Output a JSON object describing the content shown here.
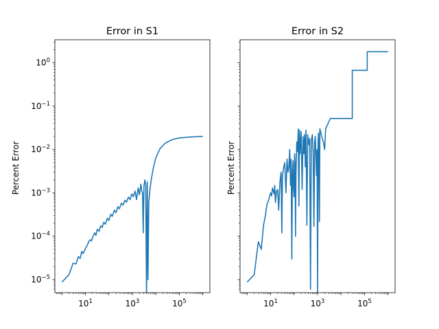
{
  "chart_data": [
    {
      "type": "line",
      "title": "Error in S1",
      "ylabel": "Percent Error",
      "xscale": "log",
      "yscale": "log",
      "xlim_exp": [
        -0.3,
        6.3
      ],
      "ylim_exp": [
        -5.3,
        0.53
      ],
      "x_ticks": [
        {
          "exp": 1,
          "base": "10",
          "sup": "1"
        },
        {
          "exp": 3,
          "base": "10",
          "sup": "3"
        },
        {
          "exp": 5,
          "base": "10",
          "sup": "5"
        }
      ],
      "y_ticks": [
        {
          "exp": 0,
          "base": "10",
          "sup": "0"
        },
        {
          "exp": -1,
          "base": "10",
          "sup": "−1"
        },
        {
          "exp": -2,
          "base": "10",
          "sup": "−2"
        },
        {
          "exp": -3,
          "base": "10",
          "sup": "−3"
        },
        {
          "exp": -4,
          "base": "10",
          "sup": "−4"
        },
        {
          "exp": -5,
          "base": "10",
          "sup": "−5"
        }
      ],
      "series": [
        {
          "color": "#1f77b4",
          "points": [
            [
              1,
              8.8e-06
            ],
            [
              2,
              1.3e-05
            ],
            [
              3,
              2.4e-05
            ],
            [
              4,
              2.3e-05
            ],
            [
              5,
              3.4e-05
            ],
            [
              6,
              3.1e-05
            ],
            [
              7,
              4.5e-05
            ],
            [
              8,
              4e-05
            ],
            [
              10,
              5.2e-05
            ],
            [
              12,
              6.2e-05
            ],
            [
              14,
              7.6e-05
            ],
            [
              16,
              8.3e-05
            ],
            [
              18,
              7.8e-05
            ],
            [
              21,
              9.9e-05
            ],
            [
              25,
              0.00012
            ],
            [
              28,
              0.000105
            ],
            [
              32,
              0.000145
            ],
            [
              38,
              0.00013
            ],
            [
              45,
              0.000175
            ],
            [
              52,
              0.00016
            ],
            [
              60,
              0.00021
            ],
            [
              70,
              0.00019
            ],
            [
              85,
              0.00026
            ],
            [
              100,
              0.00023
            ],
            [
              120,
              0.00032
            ],
            [
              140,
              0.00029
            ],
            [
              170,
              0.0004
            ],
            [
              200,
              0.00035
            ],
            [
              240,
              0.00048
            ],
            [
              280,
              0.00043
            ],
            [
              340,
              0.00058
            ],
            [
              400,
              0.00052
            ],
            [
              480,
              0.00068
            ],
            [
              560,
              0.00061
            ],
            [
              680,
              0.0008
            ],
            [
              800,
              0.0007
            ],
            [
              950,
              0.00095
            ],
            [
              1100,
              0.00082
            ],
            [
              1300,
              0.0011
            ],
            [
              1500,
              0.0007
            ],
            [
              1750,
              0.0013
            ],
            [
              2000,
              0.0009
            ],
            [
              2300,
              0.0016
            ],
            [
              2500,
              0.0011
            ],
            [
              2700,
              0.001
            ],
            [
              2900,
              0.00012
            ],
            [
              3100,
              0.0014
            ],
            [
              3400,
              0.002
            ],
            [
              3700,
              0.0015
            ],
            [
              4000,
              4e-06
            ],
            [
              4300,
              0.0018
            ],
            [
              4600,
              1e-05
            ],
            [
              5000,
              0.0006
            ],
            [
              5600,
              0.0012
            ],
            [
              6500,
              0.0022
            ],
            [
              8000,
              0.004
            ],
            [
              10000,
              0.0065
            ],
            [
              15000,
              0.0105
            ],
            [
              25000,
              0.014
            ],
            [
              50000,
              0.017
            ],
            [
              100000,
              0.0185
            ],
            [
              300000,
              0.0195
            ],
            [
              1000000,
              0.02
            ]
          ]
        }
      ]
    },
    {
      "type": "line",
      "title": "Error in S2",
      "ylabel": "Percent Error",
      "xscale": "log",
      "yscale": "log",
      "xlim_exp": [
        -0.3,
        6.3
      ],
      "ylim_exp": [
        -5.3,
        0.53
      ],
      "x_ticks": [
        {
          "exp": 1,
          "base": "10",
          "sup": "1"
        },
        {
          "exp": 3,
          "base": "10",
          "sup": "3"
        },
        {
          "exp": 5,
          "base": "10",
          "sup": "5"
        }
      ],
      "y_ticks": [],
      "series": [
        {
          "color": "#1f77b4",
          "points": [
            [
              1,
              8.8e-06
            ],
            [
              2,
              1.3e-05
            ],
            [
              3,
              7.5e-05
            ],
            [
              4,
              5e-05
            ],
            [
              5,
              0.00018
            ],
            [
              6,
              0.0003
            ],
            [
              7,
              0.00055
            ],
            [
              8,
              0.00065
            ],
            [
              10,
              0.001
            ],
            [
              11,
              0.00085
            ],
            [
              12,
              0.0013
            ],
            [
              14,
              0.00095
            ],
            [
              15,
              0.0015
            ],
            [
              16,
              0.0006
            ],
            [
              18,
              0.0011
            ],
            [
              20,
              0.0012
            ],
            [
              22,
              0.0004
            ],
            [
              25,
              0.0018
            ],
            [
              28,
              0.003
            ],
            [
              30,
              0.00012
            ],
            [
              32,
              0.0025
            ],
            [
              35,
              0.0035
            ],
            [
              40,
              0.005
            ],
            [
              45,
              0.001
            ],
            [
              50,
              0.006
            ],
            [
              55,
              0.003
            ],
            [
              60,
              0.004
            ],
            [
              65,
              0.01
            ],
            [
              70,
              0.0015
            ],
            [
              75,
              0.006
            ],
            [
              80,
              3e-05
            ],
            [
              85,
              0.003
            ],
            [
              90,
              0.0055
            ],
            [
              95,
              0.0012
            ],
            [
              100,
              0.0008
            ],
            [
              105,
              0.008
            ],
            [
              110,
              0.005
            ],
            [
              115,
              0.0001
            ],
            [
              120,
              0.0025
            ],
            [
              130,
              0.015
            ],
            [
              140,
              0.009
            ],
            [
              150,
              0.03
            ],
            [
              160,
              0.0005
            ],
            [
              170,
              0.028
            ],
            [
              180,
              0.008
            ],
            [
              200,
              0.026
            ],
            [
              220,
              0.0012
            ],
            [
              240,
              0.02
            ],
            [
              260,
              0.008
            ],
            [
              280,
              0.022
            ],
            [
              300,
              0.004
            ],
            [
              320,
              0.028
            ],
            [
              350,
              0.00018
            ],
            [
              380,
              0.022
            ],
            [
              420,
              0.013
            ],
            [
              460,
              0.018
            ],
            [
              500,
              6e-06
            ],
            [
              540,
              0.016
            ],
            [
              600,
              0.022
            ],
            [
              650,
              0.008
            ],
            [
              700,
              0.00017
            ],
            [
              750,
              0.015
            ],
            [
              800,
              0.02
            ],
            [
              900,
              0.0025
            ],
            [
              950,
              0.01
            ],
            [
              1000,
              4e-06
            ],
            [
              1050,
              0.016
            ],
            [
              1100,
              0.024
            ],
            [
              1200,
              0.00022
            ],
            [
              1250,
              0.03
            ],
            [
              1500,
              0.02
            ],
            [
              1800,
              0.014
            ],
            [
              2000,
              0.01
            ],
            [
              2200,
              0.03
            ],
            [
              3500,
              0.052
            ],
            [
              30000,
              0.052
            ],
            [
              30000,
              0.67
            ],
            [
              130000,
              0.67
            ],
            [
              130000,
              1.8
            ],
            [
              1000000,
              1.8
            ]
          ]
        }
      ]
    }
  ]
}
